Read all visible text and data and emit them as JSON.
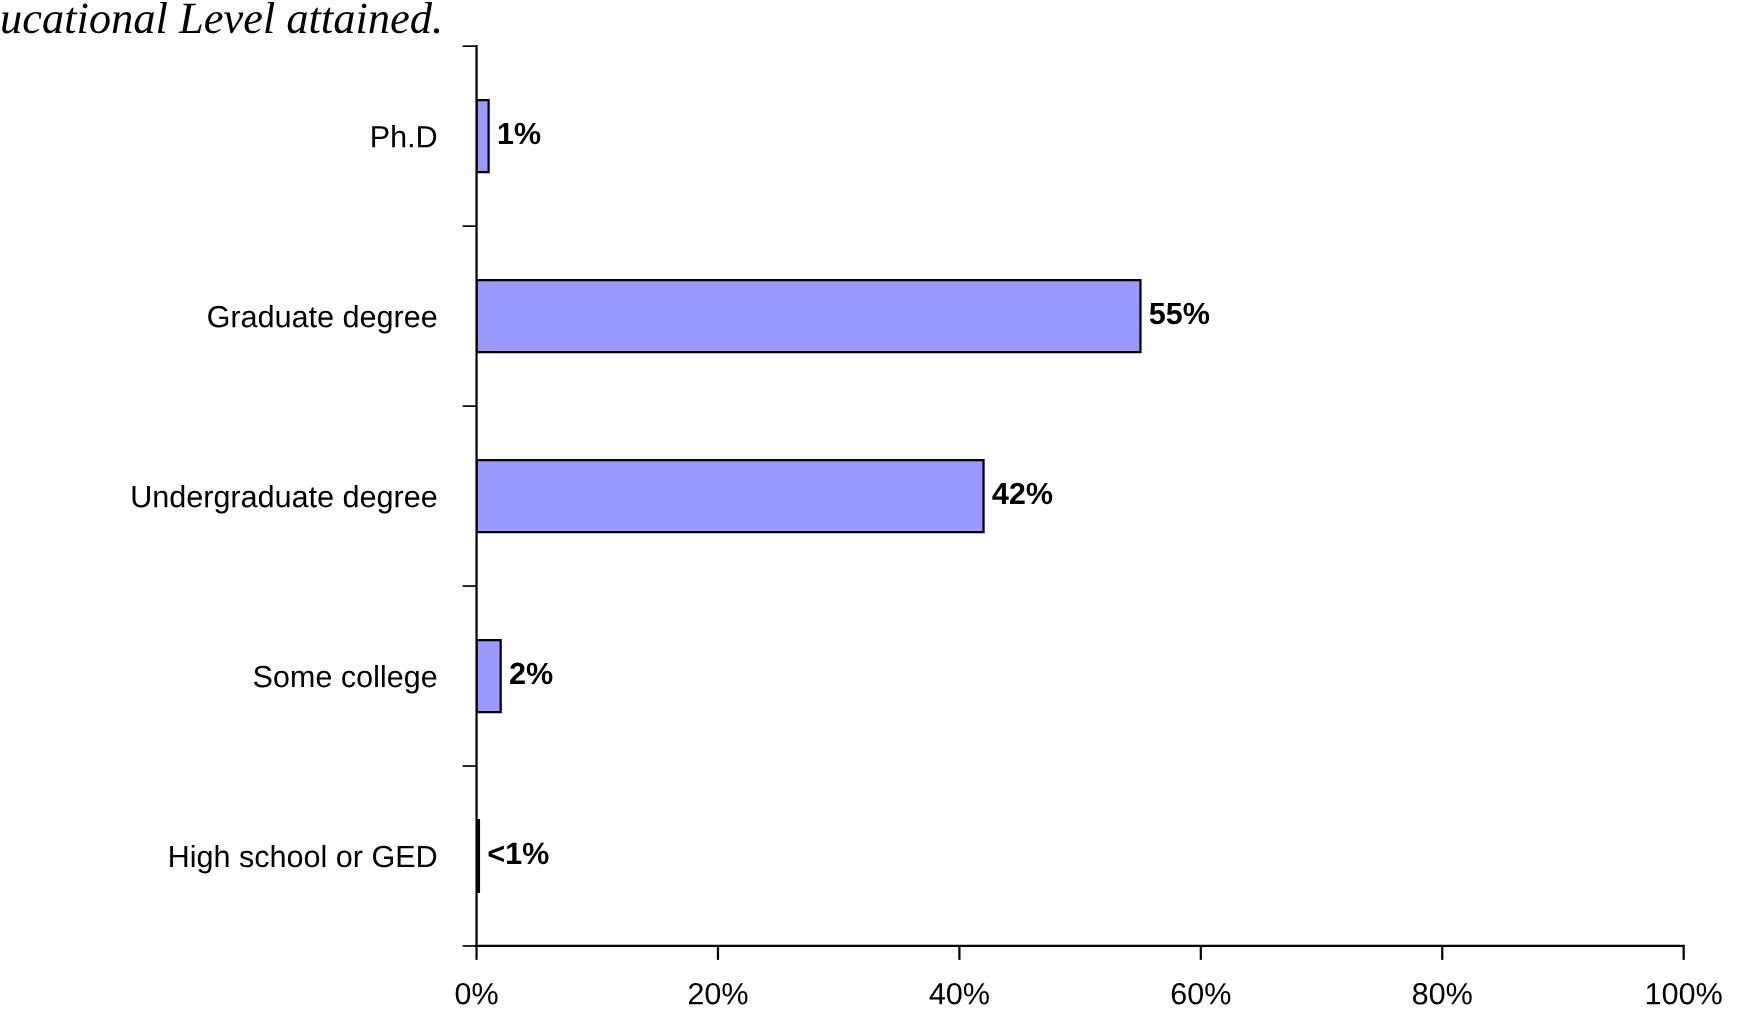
{
  "chart_data": {
    "type": "bar",
    "orientation": "horizontal",
    "title": "ucational Level attained.",
    "categories": [
      "Ph.D",
      "Graduate degree",
      "Undergraduate degree",
      "Some college",
      "High school or GED"
    ],
    "values": [
      1,
      55,
      42,
      2,
      0.2
    ],
    "value_labels": [
      "1%",
      "55%",
      "42%",
      "2%",
      "<1%"
    ],
    "color": "#9999ff",
    "xlim": [
      0,
      100
    ],
    "xticks": [
      {
        "value": 0,
        "label": "0%"
      },
      {
        "value": 20,
        "label": "20%"
      },
      {
        "value": 40,
        "label": "40%"
      },
      {
        "value": 60,
        "label": "60%"
      },
      {
        "value": 80,
        "label": "80%"
      },
      {
        "value": 100,
        "label": "100%"
      }
    ],
    "grid": false,
    "legend": false
  }
}
